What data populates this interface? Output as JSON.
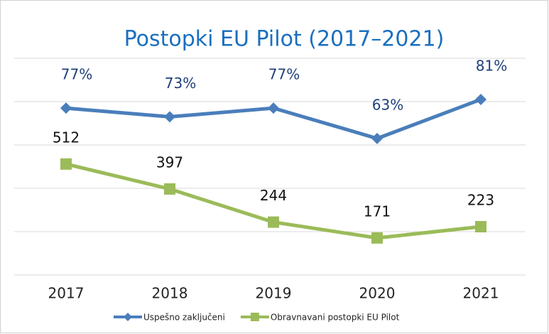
{
  "chart_data": {
    "type": "line",
    "title": "Postopki EU Pilot (2017–2021)",
    "categories": [
      "2017",
      "2018",
      "2019",
      "2020",
      "2021"
    ],
    "series": [
      {
        "name": "Uspešno zaključeni",
        "color": "#4a7ebb",
        "marker": "diamond",
        "axis": "y2",
        "values": [
          77,
          73,
          77,
          63,
          81
        ],
        "value_labels": [
          "77%",
          "73%",
          "77%",
          "63%",
          "81%"
        ]
      },
      {
        "name": "Obravnavani postopki EU Pilot",
        "color": "#9bbb59",
        "marker": "square",
        "values": [
          512,
          397,
          244,
          171,
          223
        ]
      }
    ],
    "ylim": [
      0,
      1000
    ],
    "yticks": [
      0,
      200,
      400,
      600,
      800,
      1000
    ],
    "y2lim": [
      0,
      100
    ],
    "y2ticks": [
      0,
      20,
      40,
      60,
      80,
      100
    ],
    "tick_labels": false,
    "grid": true,
    "legend": "bottom"
  }
}
